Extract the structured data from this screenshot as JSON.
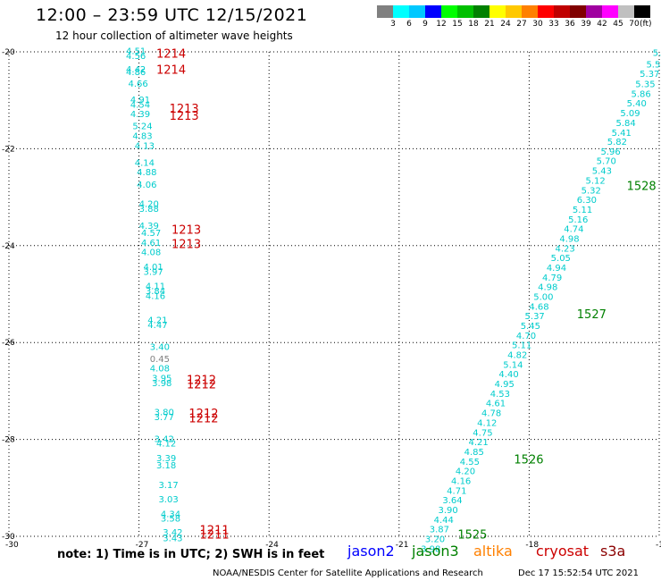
{
  "title": "12:00 – 23:59 UTC 12/15/2021",
  "subtitle": "12 hour collection of altimeter wave heights",
  "colorbar": {
    "colors": [
      "#808080",
      "#00ffff",
      "#00c8ff",
      "#0000ff",
      "#00ff00",
      "#00c000",
      "#008000",
      "#ffff00",
      "#ffc800",
      "#ff8000",
      "#ff0000",
      "#c00000",
      "#800000",
      "#a000a0",
      "#ff00ff",
      "#c0c0c0",
      "#000000"
    ],
    "labels": [
      "3",
      "6",
      "9",
      "12",
      "15",
      "18",
      "21",
      "24",
      "27",
      "30",
      "33",
      "36",
      "39",
      "42",
      "45",
      "70"
    ],
    "unit": "(ft)"
  },
  "note": "note: 1) Time is in UTC; 2) SWH is in feet",
  "satellites": [
    {
      "name": "jason2",
      "color": "#0000ff"
    },
    {
      "name": "jason3",
      "color": "#008000"
    },
    {
      "name": "altika",
      "color": "#ff8000"
    },
    {
      "name": "cryosat",
      "color": "#cc0000"
    },
    {
      "name": "s3a",
      "color": "#8b0000"
    }
  ],
  "footer_left": "NOAA/NESDIS Center for Satellite Applications and Research",
  "footer_right": "Dec 17 15:52:54 UTC 2021",
  "chart_data": {
    "type": "scatter",
    "title": "12:00 – 23:59 UTC 12/15/2021",
    "xlim": [
      -30,
      -15
    ],
    "ylim": [
      -30,
      -20
    ],
    "x_ticks": [
      "-30",
      "-27",
      "-24",
      "-21",
      "-18",
      "-15"
    ],
    "y_ticks": [
      "-20",
      "-22",
      "-24",
      "-26",
      "-28",
      "-30"
    ],
    "grid": "dotted",
    "tracks": [
      {
        "color": "#00cccc",
        "points": [
          [
            -27.3,
            -20.05,
            "4.51"
          ],
          [
            -27.3,
            -20.15,
            "4.56"
          ],
          [
            -27.3,
            -20.42,
            "4.42"
          ],
          [
            -27.3,
            -20.48,
            "4.86"
          ],
          [
            -27.25,
            -20.72,
            "4.66"
          ],
          [
            -27.2,
            -21.05,
            "4.91"
          ],
          [
            -27.2,
            -21.15,
            "4.54"
          ],
          [
            -27.2,
            -21.35,
            "4.39"
          ],
          [
            -27.15,
            -21.6,
            "5.24"
          ],
          [
            -27.15,
            -21.8,
            "4.83"
          ],
          [
            -27.1,
            -22.0,
            "4.13"
          ],
          [
            -27.1,
            -22.35,
            "4.14"
          ],
          [
            -27.05,
            -22.55,
            "4.88"
          ],
          [
            -27.05,
            -22.8,
            "4.06"
          ],
          [
            -27.0,
            -23.2,
            "4.20"
          ],
          [
            -27.0,
            -23.3,
            "3.88"
          ],
          [
            -27.0,
            -23.65,
            "4.39"
          ],
          [
            -26.95,
            -23.8,
            "4.57"
          ],
          [
            -26.95,
            -24.0,
            "4.61"
          ],
          [
            -26.95,
            -24.2,
            "4.08"
          ],
          [
            -26.9,
            -24.5,
            "4.01"
          ],
          [
            -26.9,
            -24.6,
            "3.97"
          ],
          [
            -26.85,
            -24.9,
            "4.11"
          ],
          [
            -26.85,
            -25.0,
            "3.84"
          ],
          [
            -26.85,
            -25.1,
            "4.16"
          ],
          [
            -26.8,
            -25.6,
            "4.21"
          ],
          [
            -26.8,
            -25.7,
            "4.47"
          ],
          [
            -26.75,
            -26.15,
            "3.40"
          ],
          [
            -26.75,
            -26.6,
            "4.08"
          ],
          [
            -26.7,
            -26.8,
            "3.95"
          ],
          [
            -26.7,
            -26.9,
            "3.98"
          ],
          [
            -26.65,
            -27.5,
            "3.80"
          ],
          [
            -26.65,
            -27.6,
            "3.77"
          ],
          [
            -26.65,
            -28.05,
            "3.42"
          ],
          [
            -26.6,
            -28.15,
            "4.12"
          ],
          [
            -26.6,
            -28.45,
            "3.39"
          ],
          [
            -26.6,
            -28.6,
            "3.18"
          ],
          [
            -26.55,
            -29.0,
            "3.17"
          ],
          [
            -26.55,
            -29.3,
            "3.03"
          ],
          [
            -26.5,
            -29.6,
            "4.34"
          ],
          [
            -26.5,
            -29.7,
            "3.58"
          ],
          [
            -26.45,
            -29.98,
            "3.42"
          ],
          [
            -26.45,
            -30.1,
            "3.43"
          ]
        ],
        "isolated": [
          [
            -26.75,
            -26.4,
            "0.45"
          ]
        ]
      },
      {
        "color": "#00cccc",
        "points": [
          [
            -15.15,
            -20.08,
            "5.3"
          ],
          [
            -15.3,
            -20.32,
            "5.52"
          ],
          [
            -15.45,
            -20.52,
            "5.37"
          ],
          [
            -15.55,
            -20.73,
            "5.35"
          ],
          [
            -15.65,
            -20.93,
            "5.86"
          ],
          [
            -15.75,
            -21.13,
            "5.40"
          ],
          [
            -15.9,
            -21.33,
            "5.09"
          ],
          [
            -16.0,
            -21.53,
            "5.84"
          ],
          [
            -16.1,
            -21.73,
            "5.41"
          ],
          [
            -16.2,
            -21.92,
            "5.82"
          ],
          [
            -16.35,
            -22.12,
            "5.96"
          ],
          [
            -16.45,
            -22.32,
            "5.70"
          ],
          [
            -16.55,
            -22.52,
            "5.43"
          ],
          [
            -16.7,
            -22.72,
            "5.12"
          ],
          [
            -16.8,
            -22.92,
            "5.32"
          ],
          [
            -16.9,
            -23.12,
            "6.30"
          ],
          [
            -17.0,
            -23.32,
            "5.11"
          ],
          [
            -17.1,
            -23.52,
            "5.16"
          ],
          [
            -17.2,
            -23.72,
            "4.74"
          ],
          [
            -17.3,
            -23.92,
            "4.98"
          ],
          [
            -17.4,
            -24.12,
            "4.23"
          ],
          [
            -17.5,
            -24.32,
            "5.05"
          ],
          [
            -17.6,
            -24.52,
            "4.94"
          ],
          [
            -17.7,
            -24.72,
            "4.79"
          ],
          [
            -17.8,
            -24.92,
            "4.98"
          ],
          [
            -17.9,
            -25.12,
            "5.00"
          ],
          [
            -18.0,
            -25.32,
            "4.68"
          ],
          [
            -18.1,
            -25.52,
            "5.37"
          ],
          [
            -18.2,
            -25.72,
            "5.45"
          ],
          [
            -18.3,
            -25.92,
            "4.70"
          ],
          [
            -18.4,
            -26.12,
            "5.11"
          ],
          [
            -18.5,
            -26.32,
            "4.82"
          ],
          [
            -18.6,
            -26.52,
            "5.14"
          ],
          [
            -18.7,
            -26.72,
            "4.40"
          ],
          [
            -18.8,
            -26.92,
            "4.95"
          ],
          [
            -18.9,
            -27.12,
            "4.53"
          ],
          [
            -19.0,
            -27.32,
            "4.61"
          ],
          [
            -19.1,
            -27.52,
            "4.78"
          ],
          [
            -19.2,
            -27.72,
            "4.12"
          ],
          [
            -19.3,
            -27.92,
            "4.75"
          ],
          [
            -19.4,
            -28.12,
            "4.21"
          ],
          [
            -19.5,
            -28.32,
            "4.85"
          ],
          [
            -19.6,
            -28.52,
            "4.55"
          ],
          [
            -19.7,
            -28.72,
            "4.20"
          ],
          [
            -19.8,
            -28.92,
            "4.16"
          ],
          [
            -19.9,
            -29.12,
            "4.71"
          ],
          [
            -20.0,
            -29.32,
            "3.64"
          ],
          [
            -20.1,
            -29.52,
            "3.90"
          ],
          [
            -20.2,
            -29.72,
            "4.44"
          ],
          [
            -20.3,
            -29.92,
            "3.87"
          ],
          [
            -20.4,
            -30.12,
            "3.20"
          ],
          [
            -20.5,
            -30.32,
            "3.98"
          ]
        ]
      }
    ],
    "pass_labels": [
      {
        "text": "1214",
        "x": -26.6,
        "y": -20.12,
        "color": "#cc0000"
      },
      {
        "text": "1214",
        "x": -26.6,
        "y": -20.45,
        "color": "#cc0000"
      },
      {
        "text": "1213",
        "x": -26.3,
        "y": -21.25,
        "color": "#cc0000"
      },
      {
        "text": "1213",
        "x": -26.3,
        "y": -21.4,
        "color": "#cc0000"
      },
      {
        "text": "1213",
        "x": -26.25,
        "y": -23.75,
        "color": "#cc0000"
      },
      {
        "text": "1213",
        "x": -26.25,
        "y": -24.05,
        "color": "#cc0000"
      },
      {
        "text": "1212",
        "x": -25.9,
        "y": -26.85,
        "color": "#cc0000"
      },
      {
        "text": "1212",
        "x": -25.9,
        "y": -26.95,
        "color": "#cc0000"
      },
      {
        "text": "1212",
        "x": -25.85,
        "y": -27.55,
        "color": "#cc0000"
      },
      {
        "text": "1212",
        "x": -25.85,
        "y": -27.65,
        "color": "#cc0000"
      },
      {
        "text": "1211",
        "x": -25.6,
        "y": -29.95,
        "color": "#cc0000"
      },
      {
        "text": "1211",
        "x": -25.6,
        "y": -30.05,
        "color": "#cc0000"
      },
      {
        "text": "1528",
        "x": -15.75,
        "y": -22.85,
        "color": "#008000"
      },
      {
        "text": "1527",
        "x": -16.9,
        "y": -25.5,
        "color": "#008000"
      },
      {
        "text": "1526",
        "x": -18.35,
        "y": -28.5,
        "color": "#008000"
      },
      {
        "text": "1525",
        "x": -19.65,
        "y": -30.05,
        "color": "#008000"
      }
    ]
  }
}
